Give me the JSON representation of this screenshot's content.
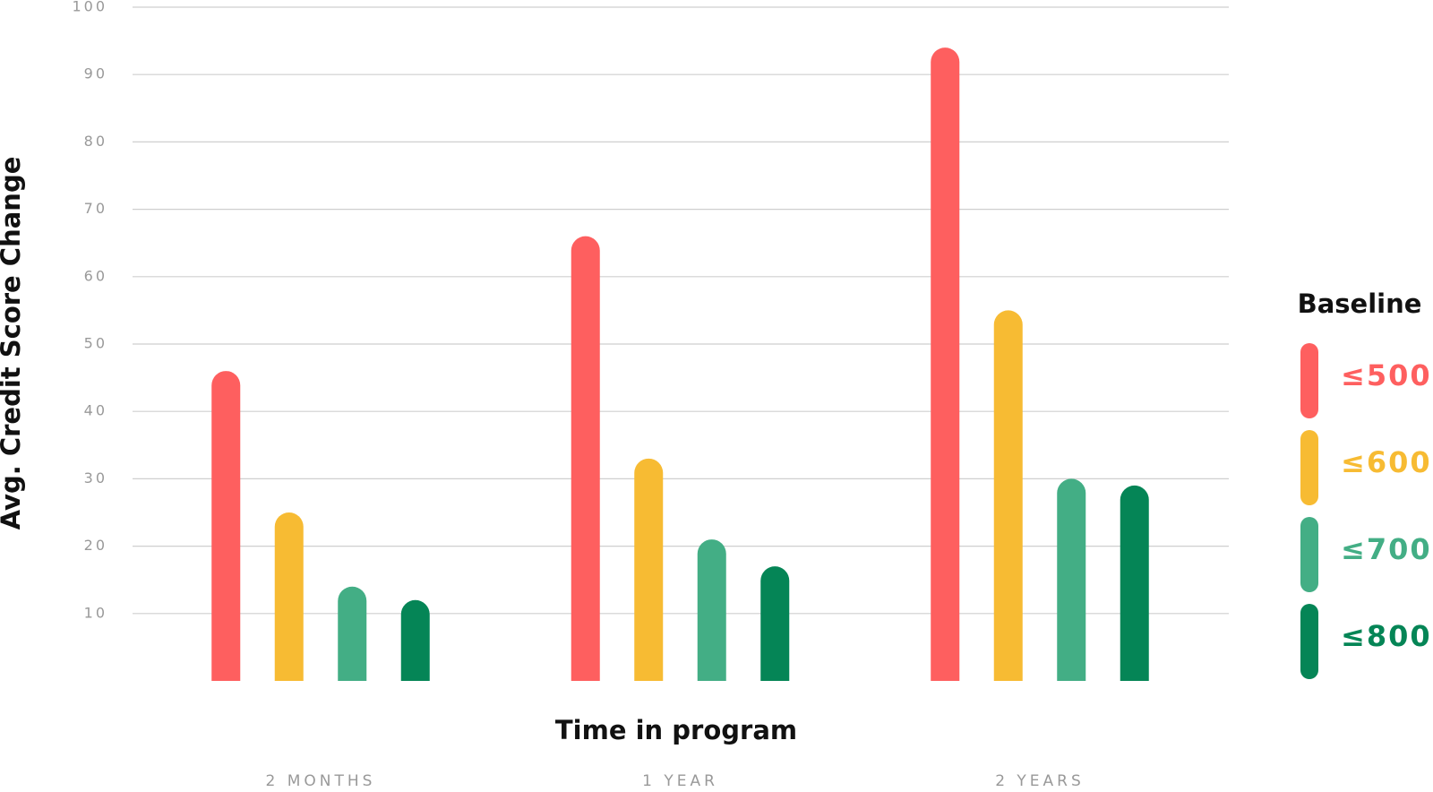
{
  "chart_data": {
    "type": "bar",
    "y_label": "Avg. Credit Score Change",
    "x_label": "Time in program",
    "legend_title": "Baseline",
    "categories": [
      "2 MONTHS",
      "1 YEAR",
      "2 YEARS"
    ],
    "series": [
      {
        "name": "≤500",
        "color": "#fe5f5f",
        "values": [
          46,
          66,
          94
        ]
      },
      {
        "name": "≤600",
        "color": "#f7bb33",
        "values": [
          25,
          33,
          55
        ]
      },
      {
        "name": "≤700",
        "color": "#43ae85",
        "values": [
          14,
          21,
          30
        ]
      },
      {
        "name": "≤800",
        "color": "#058556",
        "values": [
          12,
          17,
          29
        ]
      }
    ],
    "ylim": [
      0,
      100
    ],
    "yticks": [
      10,
      20,
      30,
      40,
      50,
      60,
      70,
      80,
      90,
      100
    ],
    "grid": true,
    "legend": "right"
  }
}
